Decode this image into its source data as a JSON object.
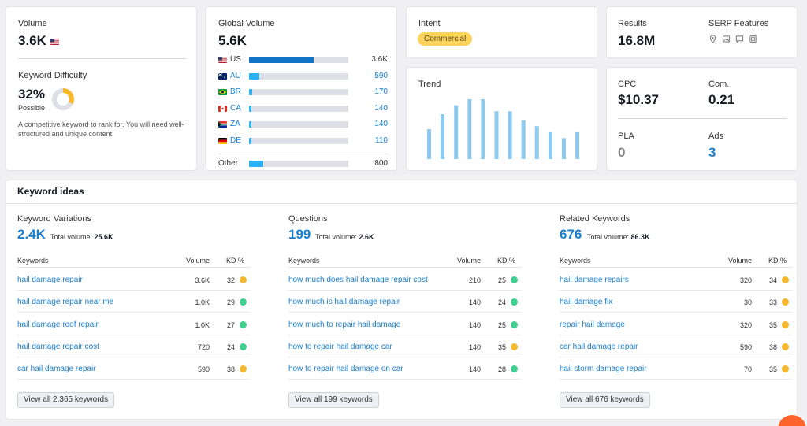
{
  "volume": {
    "label": "Volume",
    "value": "3.6K",
    "kd_label": "Keyword Difficulty",
    "kd_value": "32%",
    "kd_sub": "Possible",
    "kd_percent": 32,
    "kd_color": "#f5b82e",
    "description": "A competitive keyword to rank for. You will need well-structured and unique content."
  },
  "global": {
    "label": "Global Volume",
    "value": "5.6K",
    "rows": [
      {
        "flag": "us-flag-icon",
        "code": "US",
        "value": "3.6K",
        "fraction": 0.65
      },
      {
        "flag": "au-flag-icon",
        "code": "AU",
        "value": "590",
        "fraction": 0.1
      },
      {
        "flag": "br-flag-icon",
        "code": "BR",
        "value": "170",
        "fraction": 0.03
      },
      {
        "flag": "ca-flag-icon",
        "code": "CA",
        "value": "140",
        "fraction": 0.025
      },
      {
        "flag": "za-flag-icon",
        "code": "ZA",
        "value": "140",
        "fraction": 0.025
      },
      {
        "flag": "de-flag-icon",
        "code": "DE",
        "value": "110",
        "fraction": 0.02
      }
    ],
    "other_label": "Other",
    "other_value": "800",
    "other_fraction": 0.14
  },
  "intent": {
    "label": "Intent",
    "badge": "Commercial",
    "badge_color": "#fcd45d"
  },
  "trend": {
    "label": "Trend",
    "values": [
      0.5,
      0.75,
      0.9,
      1.0,
      1.0,
      0.8,
      0.8,
      0.65,
      0.55,
      0.45,
      0.35,
      0.45
    ],
    "bar_color": "#8ec9ef"
  },
  "results": {
    "label": "Results",
    "value": "16.8M",
    "serp_label": "SERP Features",
    "serp_icons": [
      "map-pin-icon",
      "image-icon",
      "review-icon",
      "knowledge-panel-icon"
    ]
  },
  "cpc": {
    "cpc_label": "CPC",
    "cpc_value": "$10.37",
    "com_label": "Com.",
    "com_value": "0.21",
    "pla_label": "PLA",
    "pla_value": "0",
    "ads_label": "Ads",
    "ads_value": "3"
  },
  "ideas": {
    "title": "Keyword ideas",
    "columns": [
      {
        "title": "Keyword Variations",
        "count": "2.4K",
        "total_label": "Total volume:",
        "total_value": "25.6K",
        "h_keywords": "Keywords",
        "h_volume": "Volume",
        "h_kd": "KD %",
        "rows": [
          {
            "kw": "hail damage repair",
            "vol": "3.6K",
            "kd": "32",
            "color": "#f5b82e"
          },
          {
            "kw": "hail damage repair near me",
            "vol": "1.0K",
            "kd": "29",
            "color": "#3ecf8e"
          },
          {
            "kw": "hail damage roof repair",
            "vol": "1.0K",
            "kd": "27",
            "color": "#3ecf8e"
          },
          {
            "kw": "hail damage repair cost",
            "vol": "720",
            "kd": "24",
            "color": "#3ecf8e"
          },
          {
            "kw": "car hail damage repair",
            "vol": "590",
            "kd": "38",
            "color": "#f5b82e"
          }
        ],
        "view_all": "View all 2,365 keywords"
      },
      {
        "title": "Questions",
        "count": "199",
        "total_label": "Total volume:",
        "total_value": "2.6K",
        "h_keywords": "Keywords",
        "h_volume": "Volume",
        "h_kd": "KD %",
        "rows": [
          {
            "kw": "how much does hail damage repair cost",
            "vol": "210",
            "kd": "25",
            "color": "#3ecf8e"
          },
          {
            "kw": "how much is hail damage repair",
            "vol": "140",
            "kd": "24",
            "color": "#3ecf8e"
          },
          {
            "kw": "how much to repair hail damage",
            "vol": "140",
            "kd": "25",
            "color": "#3ecf8e"
          },
          {
            "kw": "how to repair hail damage car",
            "vol": "140",
            "kd": "35",
            "color": "#f5b82e"
          },
          {
            "kw": "how to repair hail damage on car",
            "vol": "140",
            "kd": "28",
            "color": "#3ecf8e"
          }
        ],
        "view_all": "View all 199 keywords"
      },
      {
        "title": "Related Keywords",
        "count": "676",
        "total_label": "Total volume:",
        "total_value": "86.3K",
        "h_keywords": "Keywords",
        "h_volume": "Volume",
        "h_kd": "KD %",
        "rows": [
          {
            "kw": "hail damage repairs",
            "vol": "320",
            "kd": "34",
            "color": "#f5b82e"
          },
          {
            "kw": "hail damage fix",
            "vol": "30",
            "kd": "33",
            "color": "#f5b82e"
          },
          {
            "kw": "repair hail damage",
            "vol": "320",
            "kd": "35",
            "color": "#f5b82e"
          },
          {
            "kw": "car hail damage repair",
            "vol": "590",
            "kd": "38",
            "color": "#f5b82e"
          },
          {
            "kw": "hail storm damage repair",
            "vol": "70",
            "kd": "35",
            "color": "#f5b82e"
          }
        ],
        "view_all": "View all 676 keywords"
      }
    ]
  }
}
